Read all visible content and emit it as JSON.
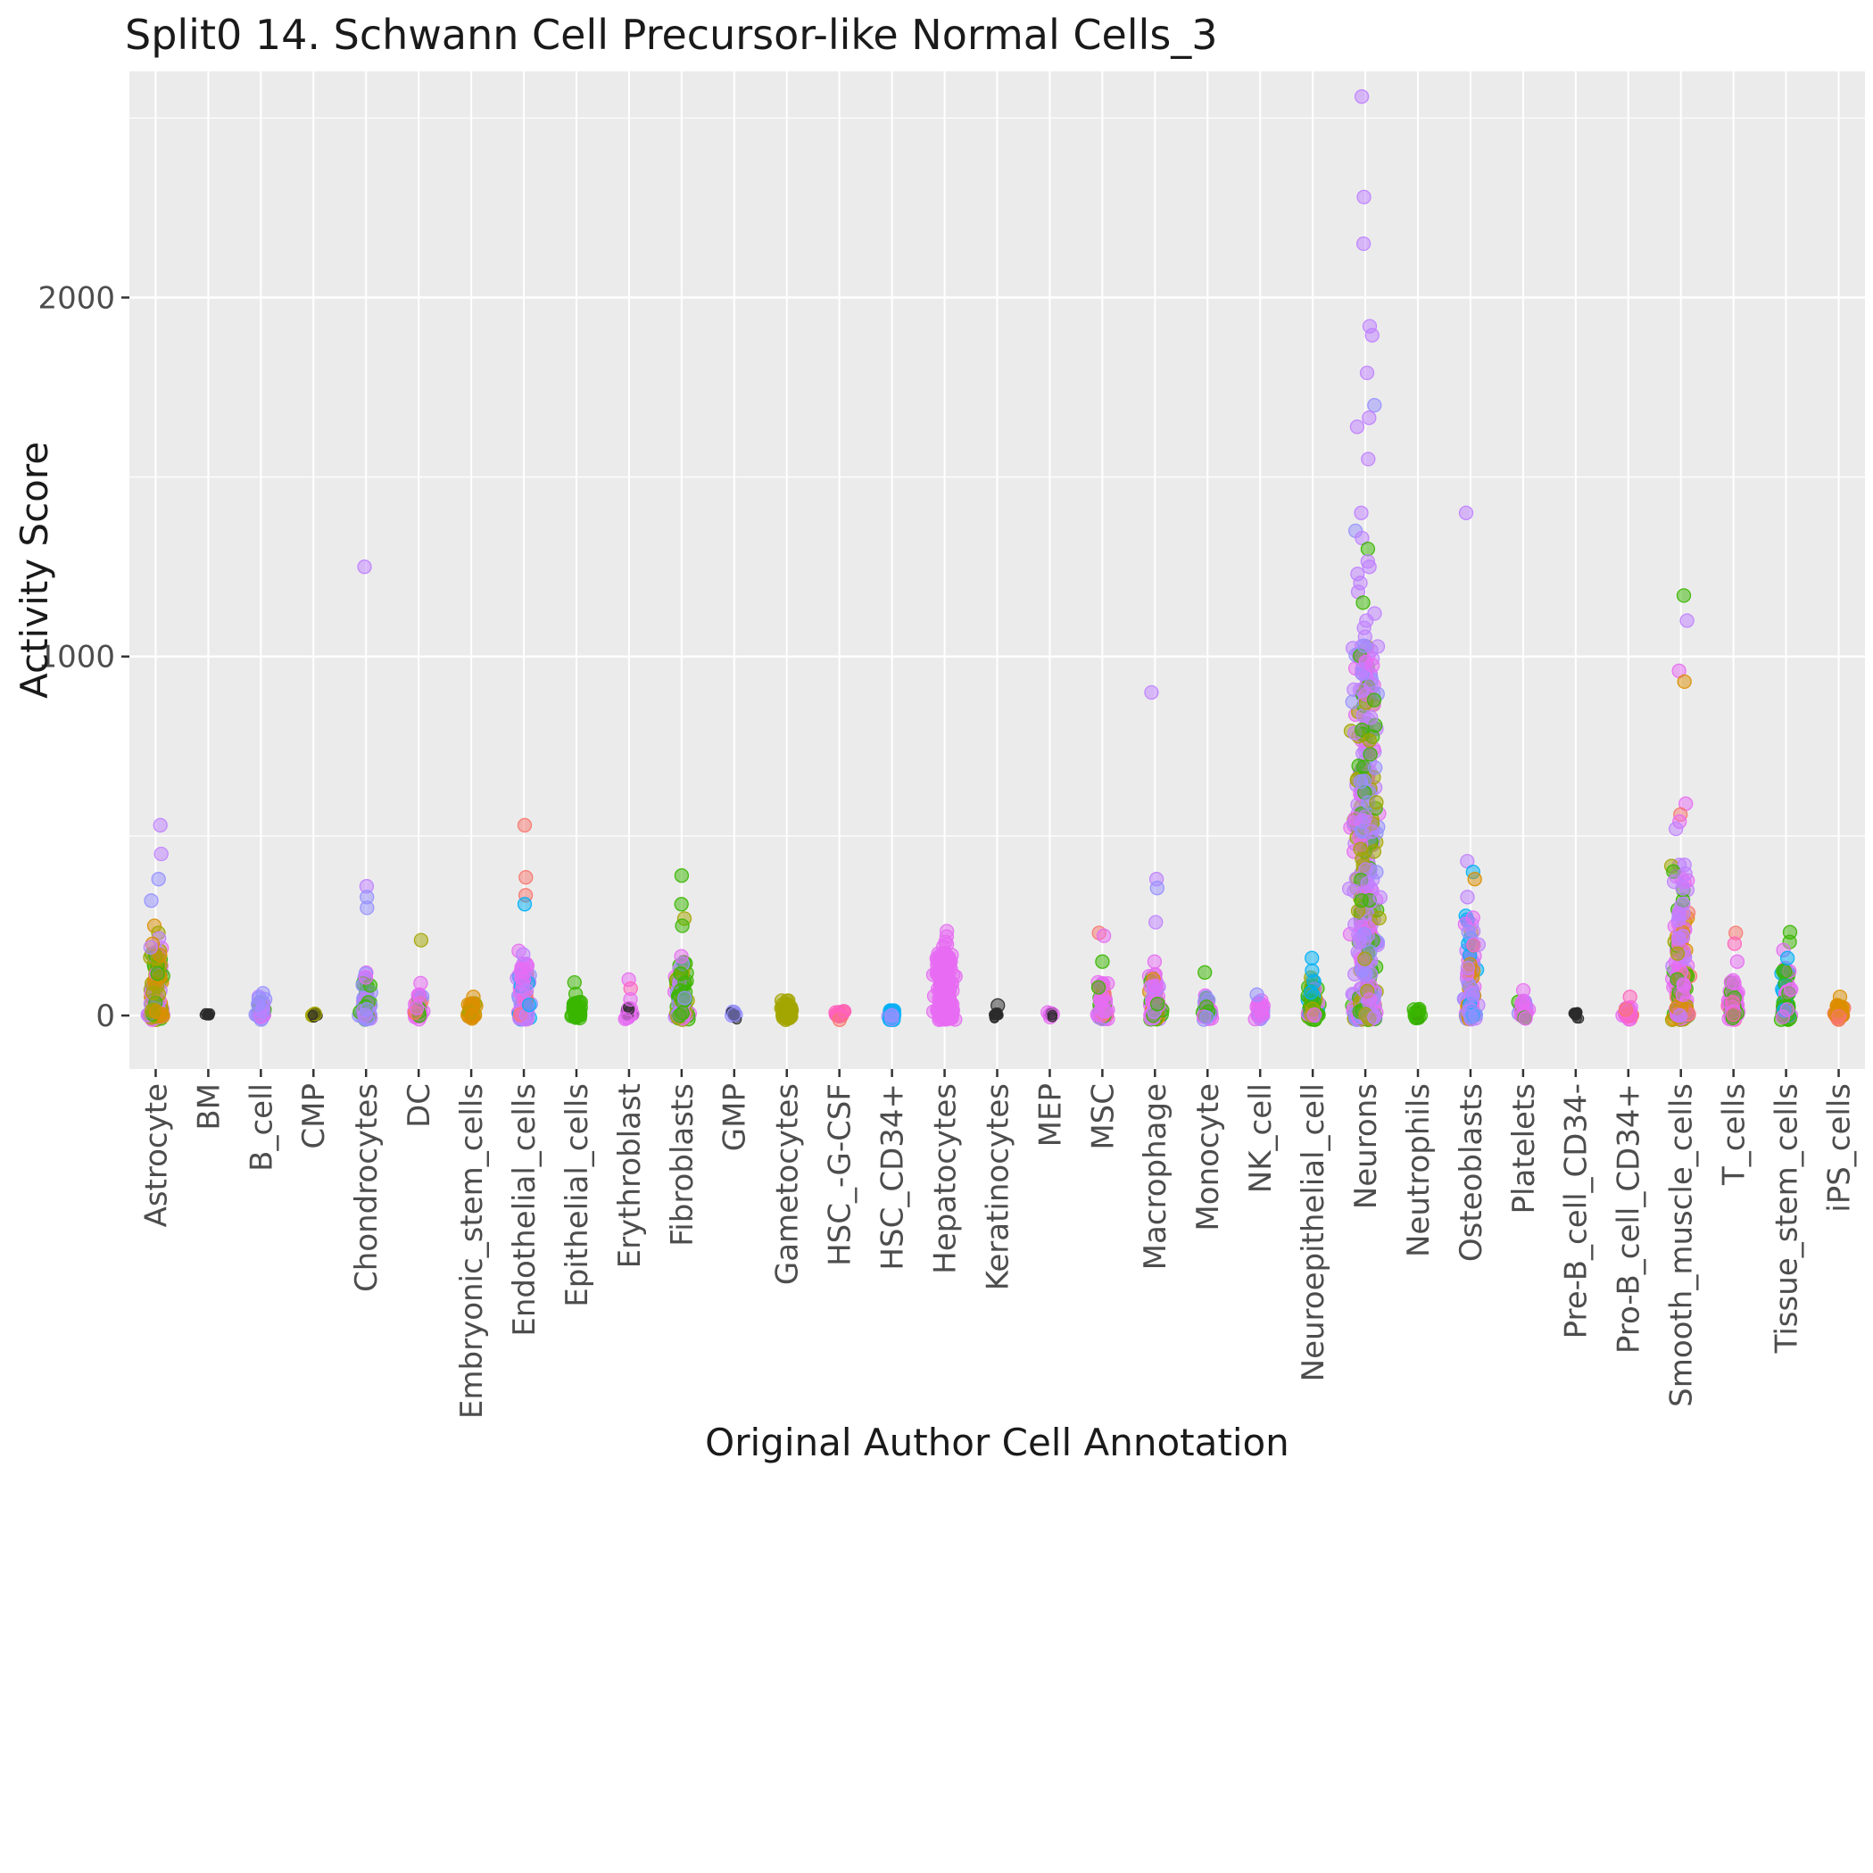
{
  "title": "Split0 14. Schwann Cell Precursor-like Normal Cells_3",
  "chart_data": {
    "type": "scatter",
    "variant": "jittered-strip-plot",
    "title": "Split0 14. Schwann Cell Precursor-like Normal Cells_3",
    "xlabel": "Original Author Cell Annotation",
    "ylabel": "Activity Score",
    "ylim": [
      -149,
      2630
    ],
    "yticks": [
      0,
      1000,
      2000
    ],
    "yticks_minor": [
      500,
      1500,
      2500
    ],
    "grid": "on",
    "legend": "none",
    "point_radius": 7.5,
    "point_alpha": 0.5,
    "colors": {
      "background": "#FFFFFF",
      "panel": "#EBEBEB",
      "grid": "#FFFFFF",
      "tick_text": "#4D4D4D",
      "text": "#1A1A1A",
      "tick_mark": "#333333"
    },
    "palette": [
      "#F8766D",
      "#DB8E00",
      "#A3A500",
      "#39B600",
      "#00B0F6",
      "#9590FF",
      "#E76BF3",
      "#BF80FF",
      "#FF62BC",
      "#2B2B2B"
    ],
    "categories": [
      "Astrocyte",
      "BM",
      "B_cell",
      "CMP",
      "Chondrocytes",
      "DC",
      "Embryonic_stem_cells",
      "Endothelial_cells",
      "Epithelial_cells",
      "Erythroblast",
      "Fibroblasts",
      "GMP",
      "Gametocytes",
      "HSC_-G-CSF",
      "HSC_CD34+",
      "Hepatocytes",
      "Keratinocytes",
      "MEP",
      "MSC",
      "Macrophage",
      "Monocyte",
      "NK_cell",
      "Neuroepithelial_cell",
      "Neurons",
      "Neutrophils",
      "Osteoblasts",
      "Platelets",
      "Pre-B_cell_CD34-",
      "Pro-B_cell_CD34+",
      "Smooth_muscle_cells",
      "T_cells",
      "Tissue_stem_cells",
      "iPS_cells"
    ],
    "series": [
      {
        "category": "Astrocyte",
        "cluster": {
          "count": 130,
          "max": 190,
          "exp": 2.2,
          "colors": [
            2,
            1,
            7,
            6,
            3
          ]
        },
        "outliers": [
          [
            530,
            7
          ],
          [
            450,
            7
          ],
          [
            380,
            5
          ],
          [
            320,
            5
          ],
          [
            250,
            1
          ],
          [
            230,
            2
          ],
          [
            215,
            7
          ],
          [
            200,
            1
          ],
          [
            190,
            7
          ]
        ]
      },
      {
        "category": "BM",
        "cluster": {
          "count": 14,
          "max": 10,
          "exp": 2.0,
          "colors": [
            9
          ]
        },
        "outliers": []
      },
      {
        "category": "B_cell",
        "cluster": {
          "count": 45,
          "max": 55,
          "exp": 2.0,
          "colors": [
            5,
            7,
            6,
            3
          ]
        },
        "outliers": [
          [
            62,
            5
          ]
        ]
      },
      {
        "category": "CMP",
        "cluster": {
          "count": 12,
          "max": 10,
          "exp": 2.0,
          "colors": [
            9,
            2
          ]
        },
        "outliers": []
      },
      {
        "category": "Chondrocytes",
        "cluster": {
          "count": 70,
          "max": 120,
          "exp": 2.2,
          "colors": [
            5,
            7,
            3,
            6
          ]
        },
        "outliers": [
          [
            1250,
            7
          ],
          [
            360,
            7
          ],
          [
            330,
            5
          ],
          [
            300,
            5
          ]
        ]
      },
      {
        "category": "DC",
        "cluster": {
          "count": 45,
          "max": 60,
          "exp": 2.2,
          "colors": [
            6,
            0,
            3,
            5
          ]
        },
        "outliers": [
          [
            210,
            2
          ],
          [
            90,
            6
          ]
        ]
      },
      {
        "category": "Embryonic_stem_cells",
        "cluster": {
          "count": 40,
          "max": 35,
          "exp": 2.0,
          "colors": [
            1,
            2
          ]
        },
        "outliers": [
          [
            52,
            1
          ]
        ]
      },
      {
        "category": "Endothelial_cells",
        "cluster": {
          "count": 110,
          "max": 150,
          "exp": 2.2,
          "colors": [
            6,
            7,
            5,
            0,
            4
          ]
        },
        "outliers": [
          [
            530,
            0
          ],
          [
            385,
            0
          ],
          [
            335,
            0
          ],
          [
            310,
            4
          ],
          [
            180,
            6
          ],
          [
            170,
            7
          ]
        ]
      },
      {
        "category": "Epithelial_cells",
        "cluster": {
          "count": 40,
          "max": 45,
          "exp": 2.0,
          "colors": [
            3
          ]
        },
        "outliers": [
          [
            92,
            3
          ],
          [
            60,
            3
          ]
        ]
      },
      {
        "category": "Erythroblast",
        "cluster": {
          "count": 28,
          "max": 25,
          "exp": 2.0,
          "colors": [
            9,
            6
          ]
        },
        "outliers": [
          [
            100,
            6
          ],
          [
            75,
            8
          ],
          [
            45,
            6
          ]
        ]
      },
      {
        "category": "Fibroblasts",
        "cluster": {
          "count": 110,
          "max": 155,
          "exp": 2.2,
          "colors": [
            3,
            2,
            6,
            7,
            5
          ]
        },
        "outliers": [
          [
            390,
            3
          ],
          [
            310,
            3
          ],
          [
            270,
            2
          ],
          [
            250,
            3
          ],
          [
            165,
            6
          ]
        ]
      },
      {
        "category": "GMP",
        "cluster": {
          "count": 16,
          "max": 12,
          "exp": 2.0,
          "colors": [
            9,
            5
          ]
        },
        "outliers": []
      },
      {
        "category": "Gametocytes",
        "cluster": {
          "count": 50,
          "max": 48,
          "exp": 1.6,
          "colors": [
            2
          ]
        },
        "outliers": []
      },
      {
        "category": "HSC_-G-CSF",
        "cluster": {
          "count": 22,
          "max": 12,
          "exp": 2.0,
          "colors": [
            8,
            0
          ]
        },
        "outliers": []
      },
      {
        "category": "HSC_CD34+",
        "cluster": {
          "count": 26,
          "max": 15,
          "exp": 2.0,
          "colors": [
            4,
            5
          ]
        },
        "outliers": []
      },
      {
        "category": "Hepatocytes",
        "cluster": {
          "count": 210,
          "max": 180,
          "exp": 1.2,
          "colors": [
            6
          ]
        },
        "outliers": [
          [
            235,
            6
          ],
          [
            220,
            6
          ],
          [
            205,
            6
          ],
          [
            198,
            6
          ],
          [
            192,
            6
          ]
        ]
      },
      {
        "category": "Keratinocytes",
        "cluster": {
          "count": 16,
          "max": 15,
          "exp": 2.0,
          "colors": [
            9
          ]
        },
        "outliers": [
          [
            28,
            9
          ]
        ]
      },
      {
        "category": "MEP",
        "cluster": {
          "count": 14,
          "max": 10,
          "exp": 2.0,
          "colors": [
            9,
            6
          ]
        },
        "outliers": []
      },
      {
        "category": "MSC",
        "cluster": {
          "count": 70,
          "max": 95,
          "exp": 2.2,
          "colors": [
            6,
            3,
            0,
            7
          ]
        },
        "outliers": [
          [
            230,
            0
          ],
          [
            222,
            6
          ],
          [
            150,
            3
          ]
        ]
      },
      {
        "category": "Macrophage",
        "cluster": {
          "count": 80,
          "max": 115,
          "exp": 2.2,
          "colors": [
            6,
            7,
            3,
            1
          ]
        },
        "outliers": [
          [
            900,
            7
          ],
          [
            380,
            7
          ],
          [
            355,
            5
          ],
          [
            260,
            7
          ],
          [
            150,
            6
          ]
        ]
      },
      {
        "category": "Monocyte",
        "cluster": {
          "count": 55,
          "max": 60,
          "exp": 2.0,
          "colors": [
            6,
            3,
            5
          ]
        },
        "outliers": [
          [
            120,
            3
          ]
        ]
      },
      {
        "category": "NK_cell",
        "cluster": {
          "count": 38,
          "max": 42,
          "exp": 2.0,
          "colors": [
            6,
            5
          ]
        },
        "outliers": [
          [
            58,
            5
          ]
        ]
      },
      {
        "category": "Neuroepithelial_cell",
        "cluster": {
          "count": 80,
          "max": 110,
          "exp": 2.2,
          "colors": [
            3,
            6,
            2,
            4
          ]
        },
        "outliers": [
          [
            160,
            4
          ],
          [
            125,
            4
          ]
        ]
      },
      {
        "category": "Neurons",
        "cluster": {
          "count": 420,
          "max": 1030,
          "exp": 1.5,
          "colors": [
            7,
            6,
            3,
            2,
            5
          ]
        },
        "outliers": [
          [
            2560,
            7
          ],
          [
            2280,
            7
          ],
          [
            2150,
            7
          ],
          [
            1920,
            7
          ],
          [
            1895,
            7
          ],
          [
            1790,
            7
          ],
          [
            1700,
            5
          ],
          [
            1665,
            7
          ],
          [
            1640,
            7
          ],
          [
            1550,
            7
          ],
          [
            1400,
            7
          ],
          [
            1350,
            5
          ],
          [
            1330,
            7
          ],
          [
            1300,
            3
          ],
          [
            1265,
            7
          ],
          [
            1250,
            7
          ],
          [
            1230,
            7
          ],
          [
            1205,
            7
          ],
          [
            1180,
            7
          ],
          [
            1150,
            3
          ],
          [
            1120,
            7
          ],
          [
            1100,
            7
          ],
          [
            1080,
            7
          ],
          [
            1055,
            7
          ],
          [
            1030,
            5
          ]
        ]
      },
      {
        "category": "Neutrophils",
        "cluster": {
          "count": 26,
          "max": 20,
          "exp": 2.0,
          "colors": [
            3,
            9
          ]
        },
        "outliers": []
      },
      {
        "category": "Osteoblasts",
        "cluster": {
          "count": 110,
          "max": 280,
          "exp": 2.2,
          "colors": [
            7,
            6,
            1,
            4,
            5
          ]
        },
        "outliers": [
          [
            1400,
            7
          ],
          [
            430,
            7
          ],
          [
            400,
            4
          ],
          [
            380,
            1
          ],
          [
            330,
            7
          ]
        ]
      },
      {
        "category": "Platelets",
        "cluster": {
          "count": 32,
          "max": 42,
          "exp": 2.0,
          "colors": [
            6,
            3,
            5
          ]
        },
        "outliers": [
          [
            70,
            6
          ]
        ]
      },
      {
        "category": "Pre-B_cell_CD34-",
        "cluster": {
          "count": 14,
          "max": 10,
          "exp": 2.0,
          "colors": [
            9
          ]
        },
        "outliers": []
      },
      {
        "category": "Pro-B_cell_CD34+",
        "cluster": {
          "count": 32,
          "max": 26,
          "exp": 2.0,
          "colors": [
            8,
            6,
            0
          ]
        },
        "outliers": [
          [
            52,
            8
          ]
        ]
      },
      {
        "category": "Smooth_muscle_cells",
        "cluster": {
          "count": 170,
          "max": 420,
          "exp": 1.9,
          "colors": [
            6,
            7,
            3,
            1,
            0,
            2
          ]
        },
        "outliers": [
          [
            1170,
            3
          ],
          [
            1100,
            7
          ],
          [
            960,
            6
          ],
          [
            930,
            1
          ],
          [
            590,
            6
          ],
          [
            560,
            0
          ],
          [
            540,
            6
          ],
          [
            520,
            7
          ]
        ]
      },
      {
        "category": "T_cells",
        "cluster": {
          "count": 70,
          "max": 105,
          "exp": 2.2,
          "colors": [
            6,
            3,
            8
          ]
        },
        "outliers": [
          [
            230,
            0
          ],
          [
            200,
            8
          ],
          [
            150,
            6
          ]
        ]
      },
      {
        "category": "Tissue_stem_cells",
        "cluster": {
          "count": 70,
          "max": 145,
          "exp": 2.2,
          "colors": [
            3,
            6,
            4
          ]
        },
        "outliers": [
          [
            232,
            3
          ],
          [
            205,
            3
          ],
          [
            182,
            6
          ],
          [
            160,
            4
          ]
        ]
      },
      {
        "category": "iPS_cells",
        "cluster": {
          "count": 42,
          "max": 30,
          "exp": 2.0,
          "colors": [
            1,
            0
          ]
        },
        "outliers": [
          [
            52,
            1
          ]
        ]
      }
    ]
  }
}
